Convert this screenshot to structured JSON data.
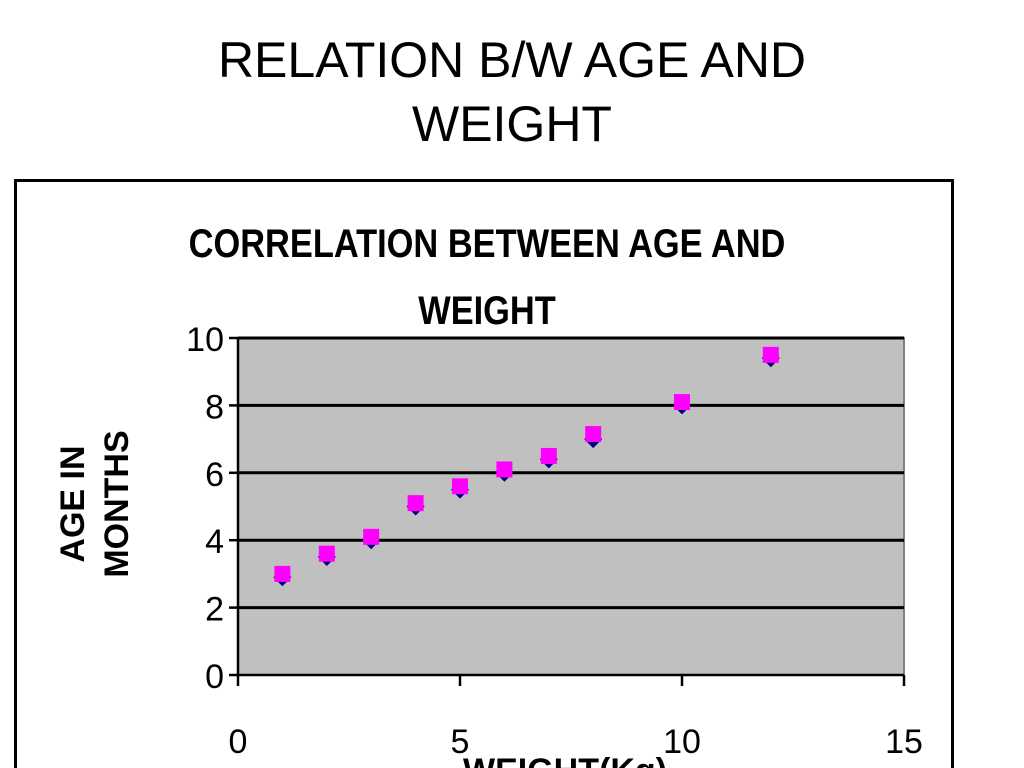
{
  "slide": {
    "title": "RELATION B/W AGE AND\nWEIGHT"
  },
  "chart_data": {
    "type": "scatter",
    "title": "CORRELATION BETWEEN AGE AND WEIGHT",
    "xlabel": "WEIGHT(Kg)",
    "ylabel": "AGE IN MONTHS",
    "xlim": [
      0,
      15
    ],
    "ylim": [
      0,
      10
    ],
    "xticks": [
      0,
      5,
      10,
      15
    ],
    "yticks": [
      0,
      2,
      4,
      6,
      8,
      10
    ],
    "grid": true,
    "plot_background": "#c0c0c0",
    "series": [
      {
        "color": "#000080",
        "marker": "diamond",
        "points": [
          [
            1,
            2.9
          ],
          [
            2,
            3.5
          ],
          [
            3,
            4.0
          ],
          [
            4,
            5.0
          ],
          [
            5,
            5.5
          ],
          [
            6,
            6.0
          ],
          [
            7,
            6.4
          ],
          [
            8,
            7.0
          ],
          [
            10,
            8.0
          ],
          [
            12,
            9.4
          ]
        ]
      },
      {
        "color": "#ff00ff",
        "marker": "square",
        "points": [
          [
            1,
            3.0
          ],
          [
            2,
            3.6
          ],
          [
            3,
            4.1
          ],
          [
            4,
            5.1
          ],
          [
            5,
            5.6
          ],
          [
            6,
            6.1
          ],
          [
            7,
            6.5
          ],
          [
            8,
            7.15
          ],
          [
            10,
            8.1
          ],
          [
            12,
            9.5
          ]
        ]
      }
    ]
  }
}
